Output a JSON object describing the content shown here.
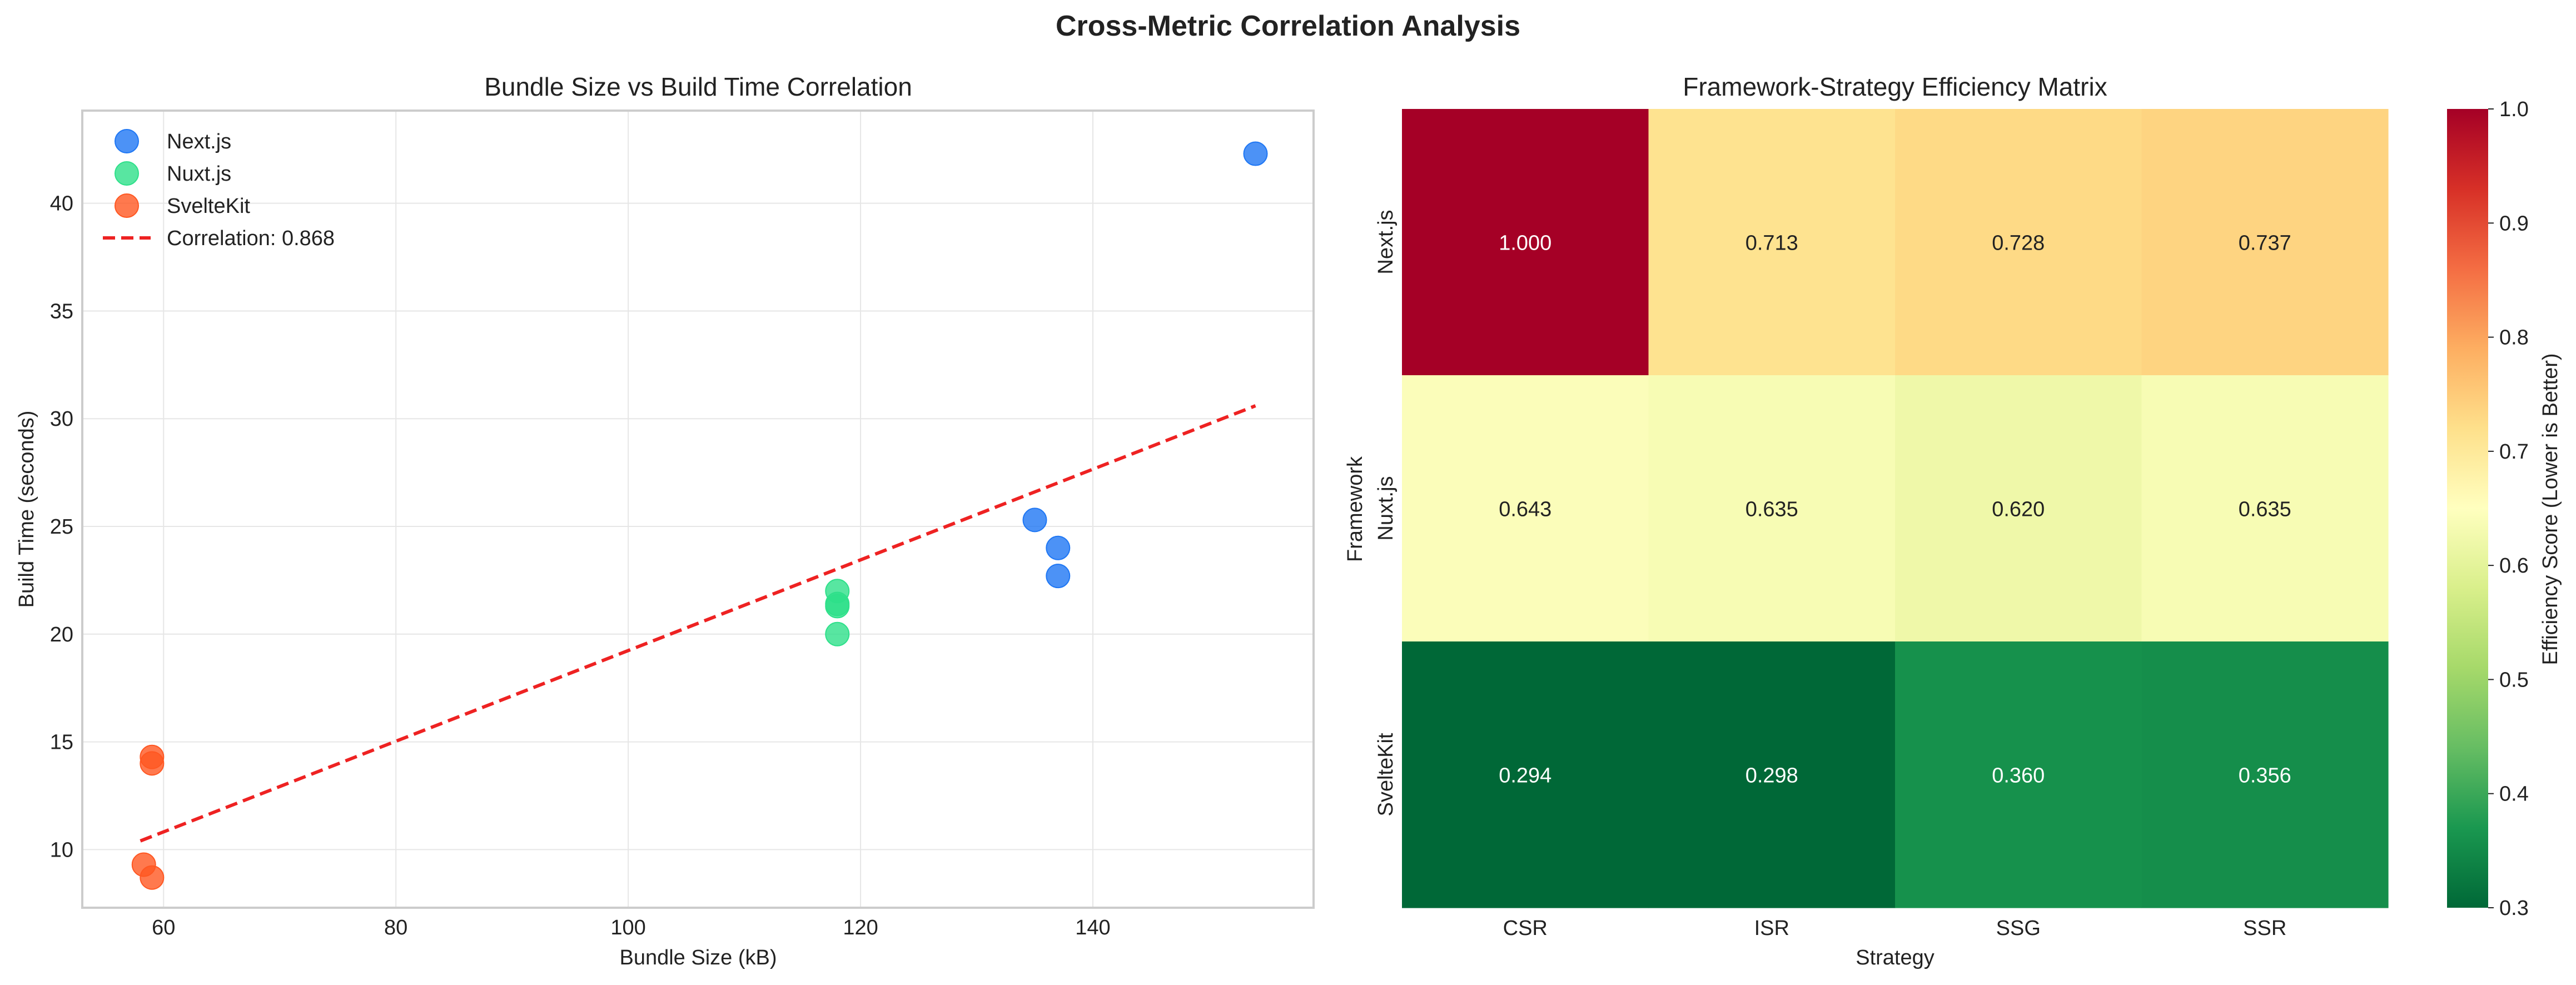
{
  "figure": {
    "suptitle": "Cross-Metric Correlation Analysis"
  },
  "chart_data": [
    {
      "type": "scatter",
      "title": "Bundle Size vs Build Time Correlation",
      "xlabel": "Bundle Size (kB)",
      "ylabel": "Build Time (seconds)",
      "xlim": [
        53,
        159
      ],
      "ylim": [
        7.3,
        44.3
      ],
      "xticks": [
        60,
        80,
        100,
        120,
        140
      ],
      "yticks": [
        10,
        15,
        20,
        25,
        30,
        35,
        40
      ],
      "grid": true,
      "legend_position": "upper-left",
      "series": [
        {
          "name": "Next.js",
          "color": "#1f77f4",
          "points": [
            [
              154,
              42.3
            ],
            [
              135,
              25.3
            ],
            [
              137,
              24.0
            ],
            [
              137,
              22.7
            ]
          ]
        },
        {
          "name": "Nuxt.js",
          "color": "#2ee08a",
          "points": [
            [
              118,
              22.0
            ],
            [
              118,
              21.4
            ],
            [
              118,
              21.3
            ],
            [
              118,
              20.0
            ]
          ]
        },
        {
          "name": "SvelteKit",
          "color": "#ff5722",
          "points": [
            [
              59,
              14.3
            ],
            [
              59,
              14.0
            ],
            [
              58.3,
              9.3
            ],
            [
              59,
              8.7
            ]
          ]
        }
      ],
      "trendline": {
        "label": "Correlation: 0.868",
        "color": "#ee2222",
        "x": [
          58,
          154
        ],
        "y": [
          10.4,
          30.6
        ]
      }
    },
    {
      "type": "heatmap",
      "title": "Framework-Strategy Efficiency Matrix",
      "xlabel": "Strategy",
      "ylabel": "Framework",
      "columns": [
        "CSR",
        "ISR",
        "SSG",
        "SSR"
      ],
      "rows": [
        "Next.js",
        "Nuxt.js",
        "SvelteKit"
      ],
      "values": [
        [
          1.0,
          0.713,
          0.728,
          0.737
        ],
        [
          0.643,
          0.635,
          0.62,
          0.635
        ],
        [
          0.294,
          0.298,
          0.36,
          0.356
        ]
      ],
      "value_labels": [
        [
          "1.000",
          "0.713",
          "0.728",
          "0.737"
        ],
        [
          "0.643",
          "0.635",
          "0.620",
          "0.635"
        ],
        [
          "0.294",
          "0.298",
          "0.360",
          "0.356"
        ]
      ],
      "colormap": "RdYlGn_r",
      "colorbar": {
        "label": "Efficiency Score (Lower is Better)",
        "range": [
          0.3,
          1.0
        ],
        "ticks": [
          "0.3",
          "0.4",
          "0.5",
          "0.6",
          "0.7",
          "0.8",
          "0.9",
          "1.0"
        ]
      }
    }
  ]
}
